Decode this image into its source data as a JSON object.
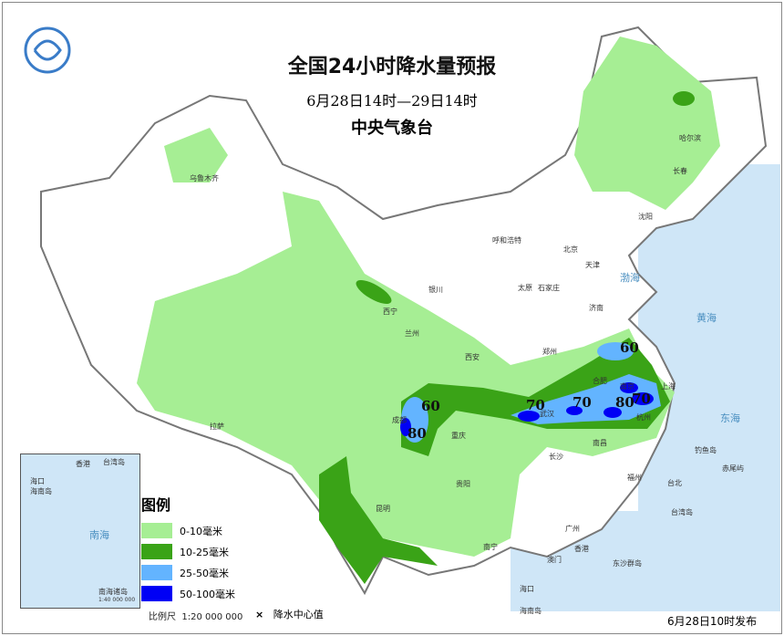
{
  "title": "全国24小时降水量预报",
  "period": "6月28日14时—29日14时",
  "organization": "中央气象台",
  "issued": "6月28日10时发布",
  "legend": {
    "title": "图例",
    "items": [
      {
        "label": "0-10毫米",
        "color": "#a6ee94"
      },
      {
        "label": "10-25毫米",
        "color": "#3aa317"
      },
      {
        "label": "25-50毫米",
        "color": "#63b4ff"
      },
      {
        "label": "50-100毫米",
        "color": "#0000f5"
      }
    ],
    "scale_label": "比例尺",
    "scale": "1:20 000 000",
    "center_symbol": "×",
    "center_label": "降水中心值"
  },
  "inset": {
    "title": "南海诸岛",
    "scale": "1:40 000 000",
    "labels": [
      "台湾岛",
      "香港",
      "海南岛",
      "南海",
      "海口"
    ]
  },
  "rain_centers": [
    "60",
    "80",
    "70",
    "70",
    "60",
    "80",
    "70"
  ],
  "cities": [
    "乌鲁木齐",
    "哈尔滨",
    "长春",
    "沈阳",
    "北京",
    "天津",
    "呼和浩特",
    "石家庄",
    "太原",
    "济南",
    "银川",
    "西宁",
    "兰州",
    "西安",
    "郑州",
    "合肥",
    "南京",
    "上海",
    "武汉",
    "杭州",
    "成都",
    "重庆",
    "贵阳",
    "长沙",
    "南昌",
    "福州",
    "台北",
    "昆明",
    "南宁",
    "广州",
    "香港",
    "澳门",
    "海口",
    "拉萨"
  ],
  "seas": [
    "渤海",
    "黄海",
    "东海",
    "南海"
  ],
  "islands": [
    "台湾岛",
    "钓鱼岛",
    "赤尾屿",
    "东沙群岛",
    "海南岛"
  ]
}
